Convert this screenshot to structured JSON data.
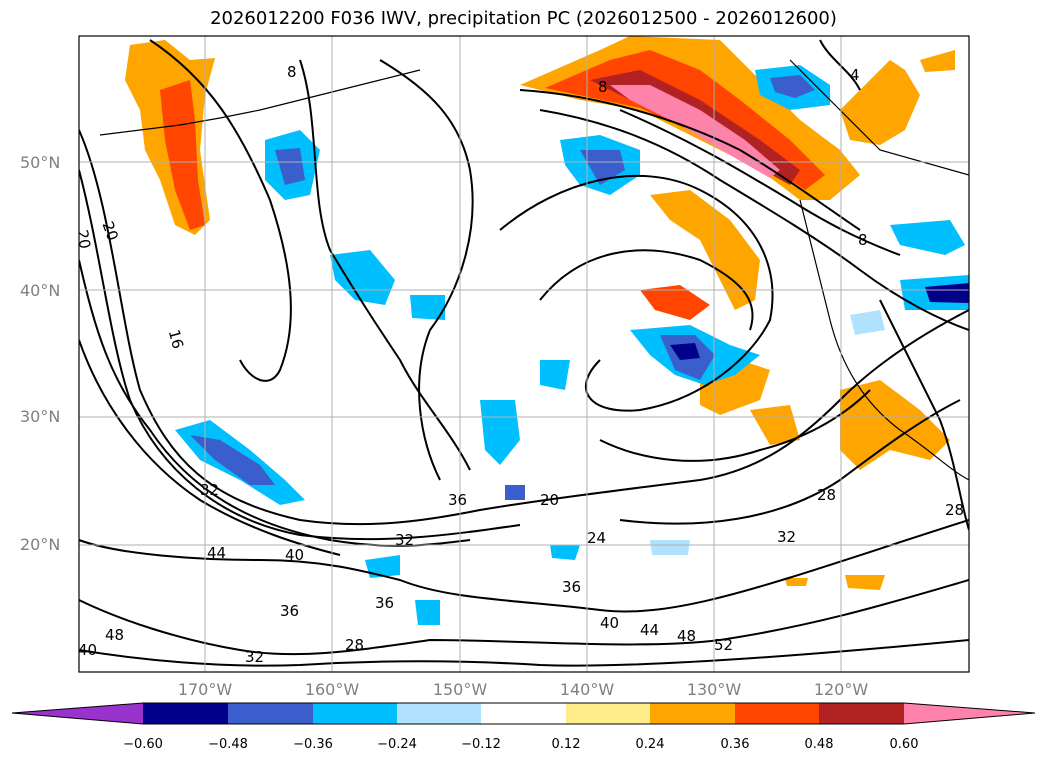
{
  "title": "2026012200 F036 IWV, precipitation PC (2026012500 - 2026012600)",
  "lat_labels": [
    "50°N",
    "40°N",
    "30°N",
    "20°N"
  ],
  "lon_labels": [
    "170°W",
    "160°W",
    "150°W",
    "140°W",
    "130°W",
    "120°W"
  ],
  "colorbar": {
    "ticks": [
      "−0.60",
      "−0.48",
      "−0.36",
      "−0.24",
      "−0.12",
      "0.12",
      "0.24",
      "0.36",
      "0.48",
      "0.60"
    ],
    "colors": [
      "#9a32cd",
      "#00008b",
      "#3a5fcd",
      "#00bfff",
      "#b0e2ff",
      "#ffffff",
      "#ffec8b",
      "#ffa500",
      "#ff4500",
      "#b22222",
      "#ff82ab"
    ]
  },
  "contour_labels": [
    "8",
    "4",
    "8",
    "20",
    "20",
    "16",
    "32",
    "44",
    "40",
    "36",
    "32",
    "36",
    "48",
    "40",
    "28",
    "32",
    "36",
    "24",
    "20",
    "36",
    "32",
    "28",
    "28",
    "40",
    "44",
    "48",
    "52",
    "8"
  ],
  "colors": {
    "positive_high": "#ff82ab",
    "negative_low": "#00008b",
    "contour": "#000000",
    "grid": "#b0b0b0"
  }
}
